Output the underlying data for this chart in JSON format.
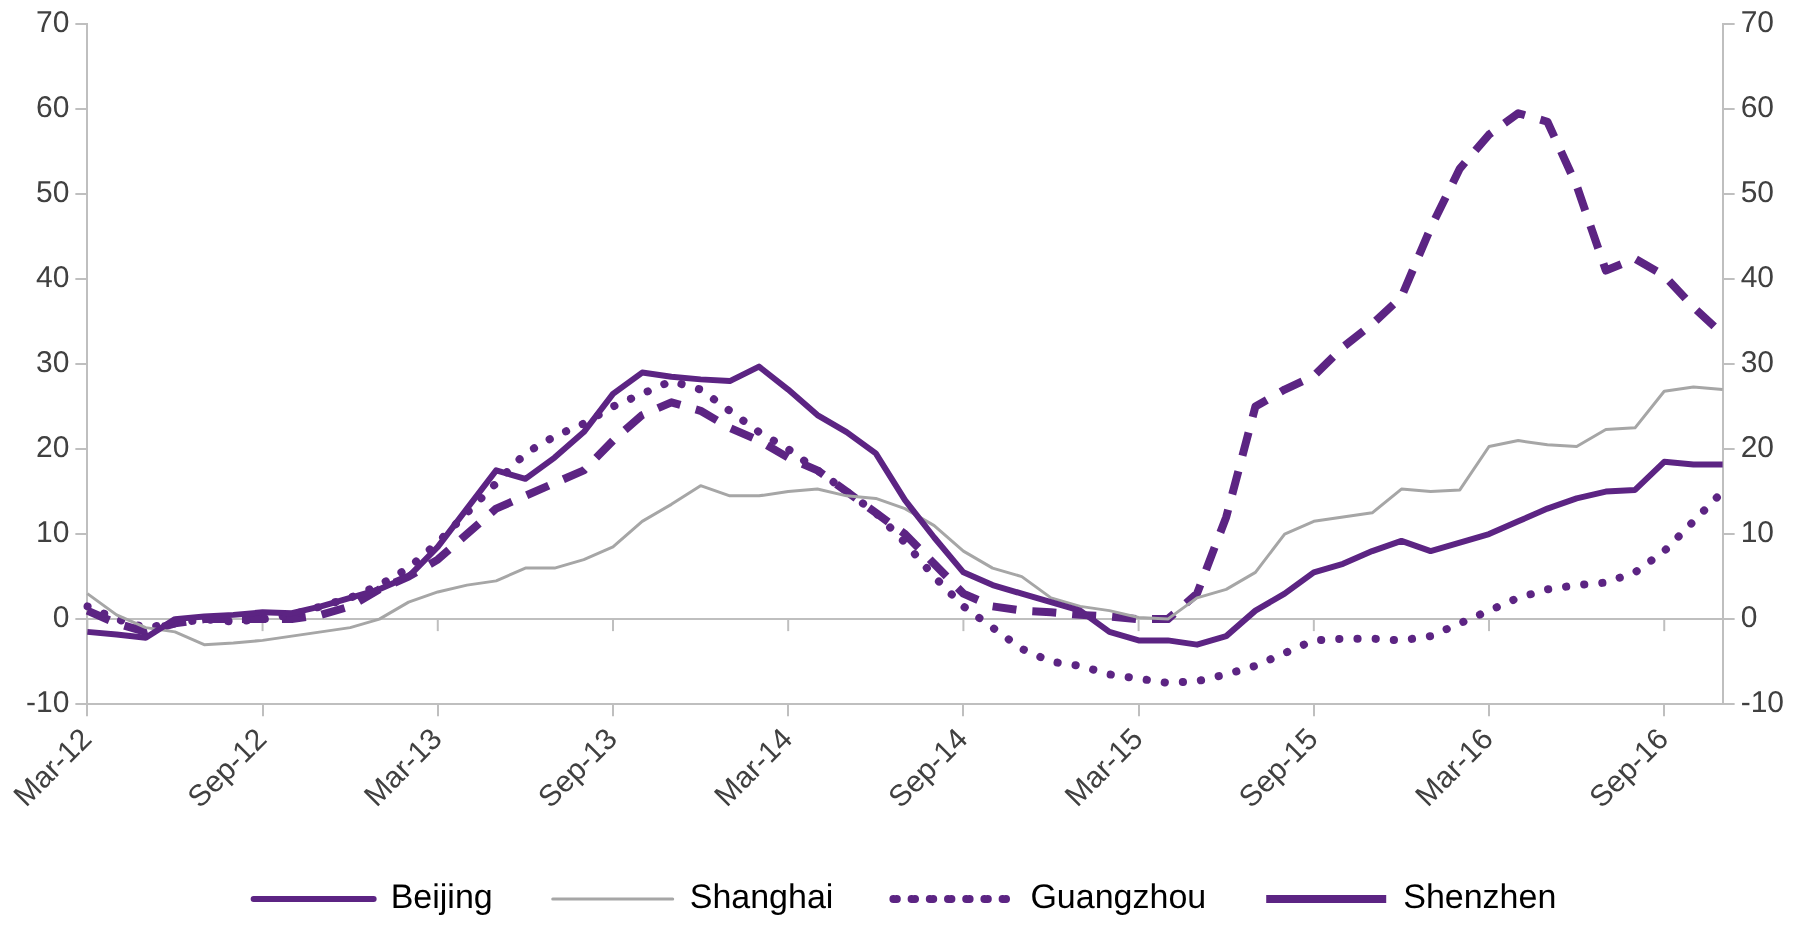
{
  "chart_data": {
    "type": "line",
    "categories": [
      "Mar-12",
      null,
      null,
      null,
      null,
      null,
      "Sep-12",
      null,
      null,
      null,
      null,
      null,
      "Mar-13",
      null,
      null,
      null,
      null,
      null,
      "Sep-13",
      null,
      null,
      null,
      null,
      null,
      "Mar-14",
      null,
      null,
      null,
      null,
      null,
      "Sep-14",
      null,
      null,
      null,
      null,
      null,
      "Mar-15",
      null,
      null,
      null,
      null,
      null,
      "Sep-15",
      null,
      null,
      null,
      null,
      null,
      "Mar-16",
      null,
      null,
      null,
      null,
      null,
      "Sep-16",
      null,
      null
    ],
    "series": [
      {
        "name": "Beijing",
        "color": "#5c2483",
        "line_style": "solid",
        "values": [
          -1.5,
          -1.8,
          -2.2,
          0,
          0.3,
          0.5,
          0.8,
          0.7,
          1.5,
          2.5,
          3.5,
          5,
          8.5,
          13,
          17.5,
          16.5,
          19,
          22,
          26.5,
          29,
          28.5,
          28.2,
          28,
          29.7,
          27,
          24,
          22,
          19.5,
          14,
          9.6,
          5.5,
          4,
          3,
          2,
          1,
          -1.5,
          -2.5,
          -2.5,
          -3,
          -2,
          1,
          3,
          5.5,
          6.5,
          8,
          9.2,
          8,
          9,
          10,
          11.5,
          13,
          14.2,
          15,
          15.2,
          18.5,
          18.2,
          18.2
        ]
      },
      {
        "name": "Shanghai",
        "color": "#a6a6a6",
        "line_style": "solid",
        "values": [
          3,
          0.5,
          -1,
          -1.5,
          -3,
          -2.8,
          -2.5,
          -2,
          -1.5,
          -1,
          0,
          2,
          3.2,
          4,
          4.5,
          6,
          6,
          7,
          8.5,
          11.5,
          13.5,
          15.7,
          14.5,
          14.5,
          15,
          15.3,
          14.5,
          14.2,
          13,
          11,
          8,
          6,
          5,
          2.5,
          1.5,
          1,
          0.2,
          0,
          2.5,
          3.5,
          5.5,
          10,
          11.5,
          12,
          12.5,
          15.3,
          15,
          15.2,
          20.3,
          21,
          20.5,
          20.3,
          22.3,
          22.5,
          26.8,
          27.3,
          27
        ]
      },
      {
        "name": "Guangzhou",
        "color": "#5c2483",
        "line_style": "dotted",
        "values": [
          1.5,
          0,
          -1,
          -0.5,
          0,
          -0.3,
          0,
          0.5,
          1.5,
          2.5,
          4,
          6,
          9,
          12.5,
          16,
          19.5,
          21.5,
          23,
          25,
          26.5,
          28,
          27,
          24.5,
          22,
          20,
          17.5,
          15,
          12.5,
          9,
          5,
          1.5,
          -1,
          -3.5,
          -5,
          -5.5,
          -6.5,
          -7,
          -7.5,
          -7.3,
          -6.5,
          -5.5,
          -4,
          -2.5,
          -2.3,
          -2.3,
          -2.5,
          -2,
          -0.5,
          1,
          2.5,
          3.5,
          4,
          4.3,
          5.5,
          8,
          11.5,
          15
        ]
      },
      {
        "name": "Shenzhen",
        "color": "#5c2483",
        "line_style": "dashed",
        "values": [
          1,
          -0.5,
          -1.5,
          -0.5,
          0,
          0,
          0,
          0,
          0.5,
          1.5,
          3.5,
          5,
          7,
          10,
          13,
          14.5,
          16,
          17.5,
          21,
          24,
          25.5,
          24.5,
          22.5,
          21,
          19,
          17.5,
          15,
          12.5,
          10,
          6.5,
          3,
          1.5,
          1,
          0.8,
          0.5,
          0.3,
          0,
          0,
          3,
          12,
          25,
          27,
          28.6,
          32,
          34.7,
          37.9,
          46,
          53,
          57,
          59.5,
          58.5,
          51,
          41,
          42.4,
          40.4,
          36.7,
          33.5
        ]
      }
    ],
    "ylim": [
      -10,
      70
    ],
    "yticks": [
      -10,
      0,
      10,
      20,
      30,
      40,
      50,
      60,
      70
    ],
    "y2lim": [
      -10,
      70
    ],
    "y2ticks": [
      -10,
      0,
      10,
      20,
      30,
      40,
      50,
      60,
      70
    ],
    "ref_lines": [
      {
        "axis": "y",
        "value": 0,
        "color": "#bfbfbf"
      }
    ],
    "grid": false,
    "legend": "bottom",
    "marker": "none"
  }
}
